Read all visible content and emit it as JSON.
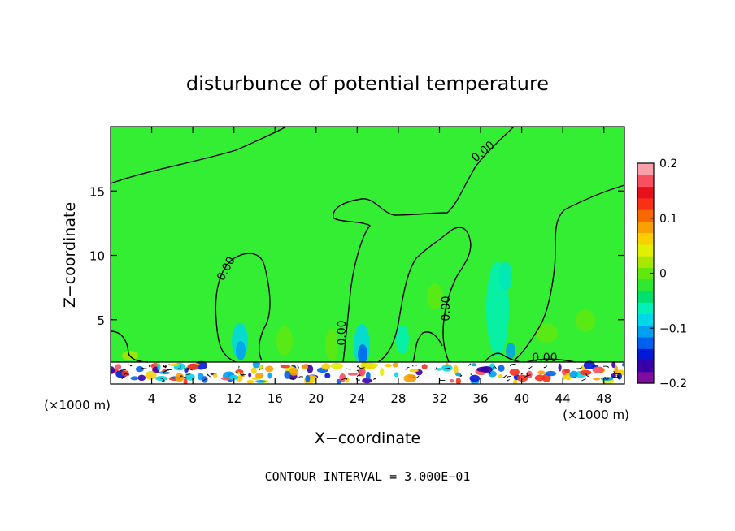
{
  "chart_data": {
    "type": "heatmap",
    "title": "disturbunce of potential temperature",
    "xlabel": "X−coordinate",
    "ylabel": "Z−coordinate",
    "x_unit": "(×1000 m)",
    "y_unit": "(×1000 m)",
    "xlim": [
      0,
      50
    ],
    "ylim": [
      0,
      20
    ],
    "x_ticks": [
      4,
      8,
      12,
      16,
      20,
      24,
      28,
      32,
      36,
      40,
      44,
      48
    ],
    "x_tick_labels": [
      "4",
      "8",
      "12",
      "16",
      "20",
      "24",
      "28",
      "32",
      "36",
      "40",
      "44",
      "48"
    ],
    "y_ticks": [
      5,
      10,
      15
    ],
    "y_tick_labels": [
      "5",
      "10",
      "15"
    ],
    "colorbar": {
      "min": -0.2,
      "max": 0.2,
      "tick_values": [
        0.2,
        0.1,
        0,
        -0.1,
        -0.2
      ],
      "tick_labels": [
        "0.2",
        "0.1",
        "0",
        "−0.1",
        "−0.2"
      ],
      "colors": [
        "#7f0ca0",
        "#3a00a8",
        "#0018d8",
        "#0060f0",
        "#00a0f0",
        "#00d8e8",
        "#00f0b8",
        "#00e070",
        "#30e830",
        "#60e810",
        "#a8e800",
        "#e0f000",
        "#f8d000",
        "#f8a000",
        "#f86800",
        "#f83018",
        "#e8101a",
        "#f85060",
        "#f8a0a8"
      ]
    },
    "background_color": "#33ee33",
    "contour_label": "0.00",
    "footnote": "CONTOUR INTERVAL = 3.000E−01"
  }
}
